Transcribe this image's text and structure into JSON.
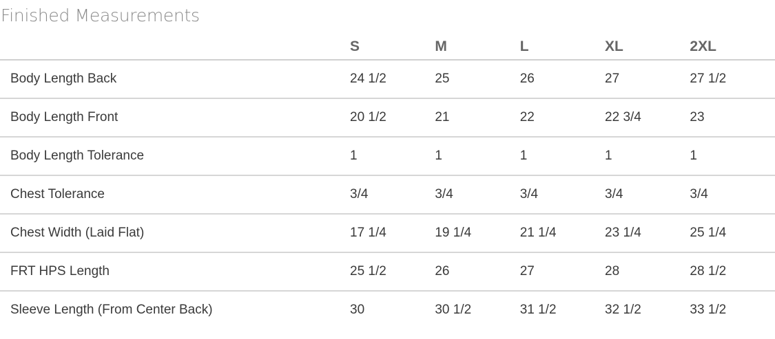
{
  "title": "Finished Measurements",
  "sizes": [
    "S",
    "M",
    "L",
    "XL",
    "2XL"
  ],
  "rows": [
    {
      "label": "Body Length Back",
      "values": [
        "24 1/2",
        "25",
        "26",
        "27",
        "27 1/2"
      ]
    },
    {
      "label": "Body Length Front",
      "values": [
        "20 1/2",
        "21",
        "22",
        "22 3/4",
        "23"
      ]
    },
    {
      "label": "Body Length Tolerance",
      "values": [
        "1",
        "1",
        "1",
        "1",
        "1"
      ]
    },
    {
      "label": "Chest Tolerance",
      "values": [
        "3/4",
        "3/4",
        "3/4",
        "3/4",
        "3/4"
      ]
    },
    {
      "label": "Chest Width (Laid Flat)",
      "values": [
        "17 1/4",
        "19 1/4",
        "21 1/4",
        "23 1/4",
        "25 1/4"
      ]
    },
    {
      "label": "FRT HPS Length",
      "values": [
        "25 1/2",
        "26",
        "27",
        "28",
        "28 1/2"
      ]
    },
    {
      "label": "Sleeve Length (From Center Back)",
      "values": [
        "30",
        "30 1/2",
        "31 1/2",
        "32 1/2",
        "33 1/2"
      ]
    }
  ]
}
